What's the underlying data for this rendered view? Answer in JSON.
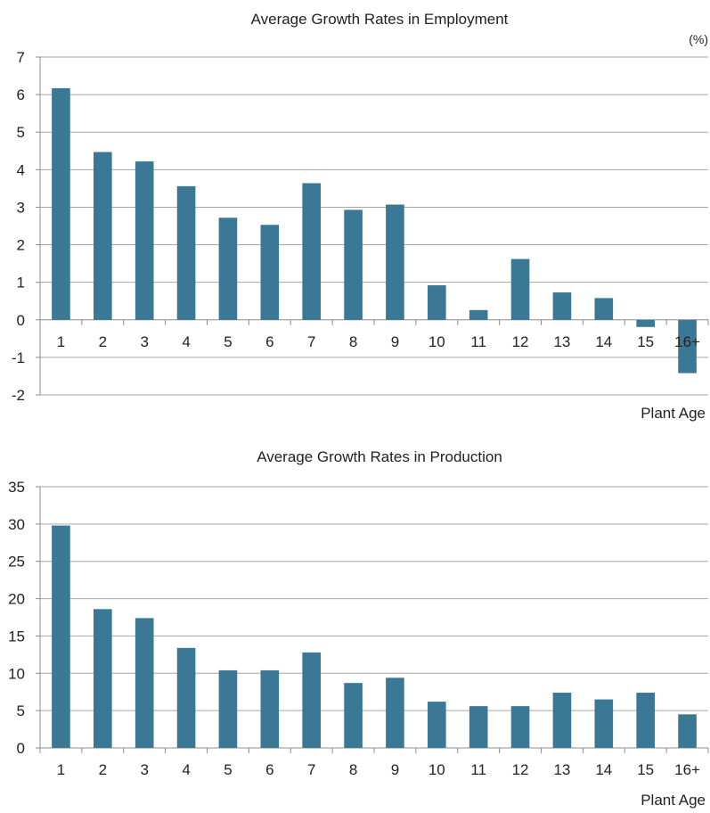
{
  "colors": {
    "bar": "#3b7896",
    "grid": "#a6a6a6",
    "axis": "#8c8c8c"
  },
  "chart_data": [
    {
      "type": "bar",
      "title": "Average Growth Rates in Employment",
      "unit": "(%)",
      "xlabel": "Plant Age",
      "ylabel": "",
      "categories": [
        "1",
        "2",
        "3",
        "4",
        "5",
        "6",
        "7",
        "8",
        "9",
        "10",
        "11",
        "12",
        "13",
        "14",
        "15",
        "16+"
      ],
      "values": [
        6.17,
        4.47,
        4.22,
        3.56,
        2.72,
        2.53,
        3.64,
        2.93,
        3.07,
        0.92,
        0.26,
        1.62,
        0.73,
        0.58,
        -0.19,
        -1.42
      ],
      "ylim": [
        -2,
        7
      ],
      "yticks": [
        -2,
        -1,
        0,
        1,
        2,
        3,
        4,
        5,
        6,
        7
      ],
      "grid": true,
      "legend": "none"
    },
    {
      "type": "bar",
      "title": "Average Growth Rates in Production",
      "unit": "",
      "xlabel": "Plant Age",
      "ylabel": "",
      "categories": [
        "1",
        "2",
        "3",
        "4",
        "5",
        "6",
        "7",
        "8",
        "9",
        "10",
        "11",
        "12",
        "13",
        "14",
        "15",
        "16+"
      ],
      "values": [
        29.8,
        18.6,
        17.4,
        13.4,
        10.4,
        10.4,
        12.8,
        8.7,
        9.4,
        6.2,
        5.6,
        5.6,
        7.4,
        6.5,
        7.4,
        4.5
      ],
      "ylim": [
        0,
        35
      ],
      "yticks": [
        0,
        5,
        10,
        15,
        20,
        25,
        30,
        35
      ],
      "grid": true,
      "legend": "none"
    }
  ]
}
